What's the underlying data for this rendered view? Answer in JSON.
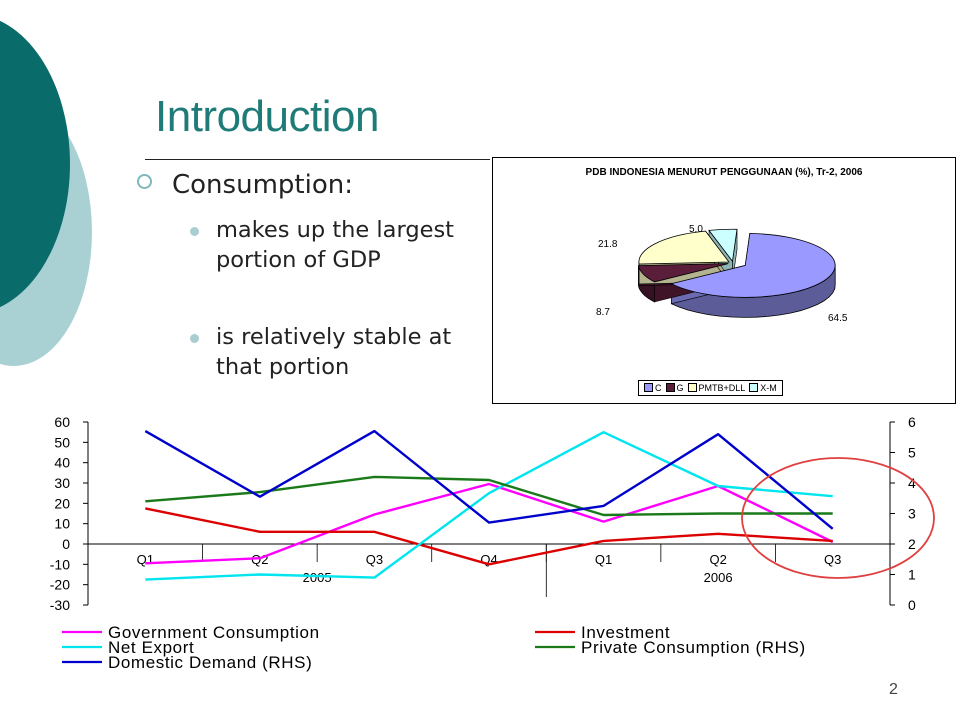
{
  "slide": {
    "title": "Introduction",
    "bullet": "Consumption:",
    "sub_bullets": [
      "makes up the largest portion of GDP",
      "is relatively stable at that portion"
    ],
    "page_number": "2",
    "title_color": "#1f7b78"
  },
  "chart_data": [
    {
      "type": "pie",
      "title": "PDB INDONESIA MENURUT PENGGUNAAN (%), Tr-2, 2006",
      "categories": [
        "C",
        "G",
        "PMTB+DLL",
        "X-M"
      ],
      "values": [
        64.5,
        8.7,
        21.8,
        5.0
      ],
      "value_labels": [
        "64.5",
        "8.7",
        "21.8",
        "5.0"
      ],
      "colors": [
        "#9999ff",
        "#5a1d3a",
        "#ffffcc",
        "#ccffff"
      ],
      "legend": "bottom",
      "three_d": true
    },
    {
      "type": "line",
      "categories": [
        "Q1",
        "Q2",
        "Q3",
        "Q4",
        "Q1",
        "Q2",
        "Q3"
      ],
      "year_labels": [
        "2005",
        "2006"
      ],
      "ylim": [
        -30,
        60
      ],
      "yticks": [
        "60",
        "50",
        "40",
        "30",
        "20",
        "10",
        "0",
        "-10",
        "-20",
        "-30"
      ],
      "y2lim": [
        0,
        6
      ],
      "y2ticks": [
        "6",
        "5",
        "4",
        "3",
        "2",
        "1",
        "0"
      ],
      "grid": false,
      "legend": "bottom",
      "series": [
        {
          "name": "Government Consumption",
          "axis": "left",
          "color": "#ff00ff",
          "values": [
            -9.5,
            -7,
            14.5,
            29.5,
            11,
            28.5,
            1
          ]
        },
        {
          "name": "Investment",
          "axis": "left",
          "color": "#dd0000",
          "values": [
            17.5,
            6,
            6,
            -10,
            1.5,
            5,
            1.5
          ]
        },
        {
          "name": "Net Export",
          "axis": "left",
          "color": "#00e5ee",
          "values": [
            -17.5,
            -15,
            -16.5,
            25,
            55,
            28.5,
            23.5
          ]
        },
        {
          "name": "Private Consumption (RHS)",
          "axis": "right",
          "color": "#1a7a1a",
          "values": [
            3.4,
            3.7,
            4.2,
            4.1,
            2.95,
            3.0,
            3.0
          ]
        },
        {
          "name": "Domestic Demand (RHS)",
          "axis": "right",
          "color": "#0000cc",
          "values": [
            5.7,
            3.55,
            5.7,
            2.7,
            3.25,
            5.6,
            2.5
          ]
        }
      ],
      "highlight_color": "#e04040"
    }
  ]
}
